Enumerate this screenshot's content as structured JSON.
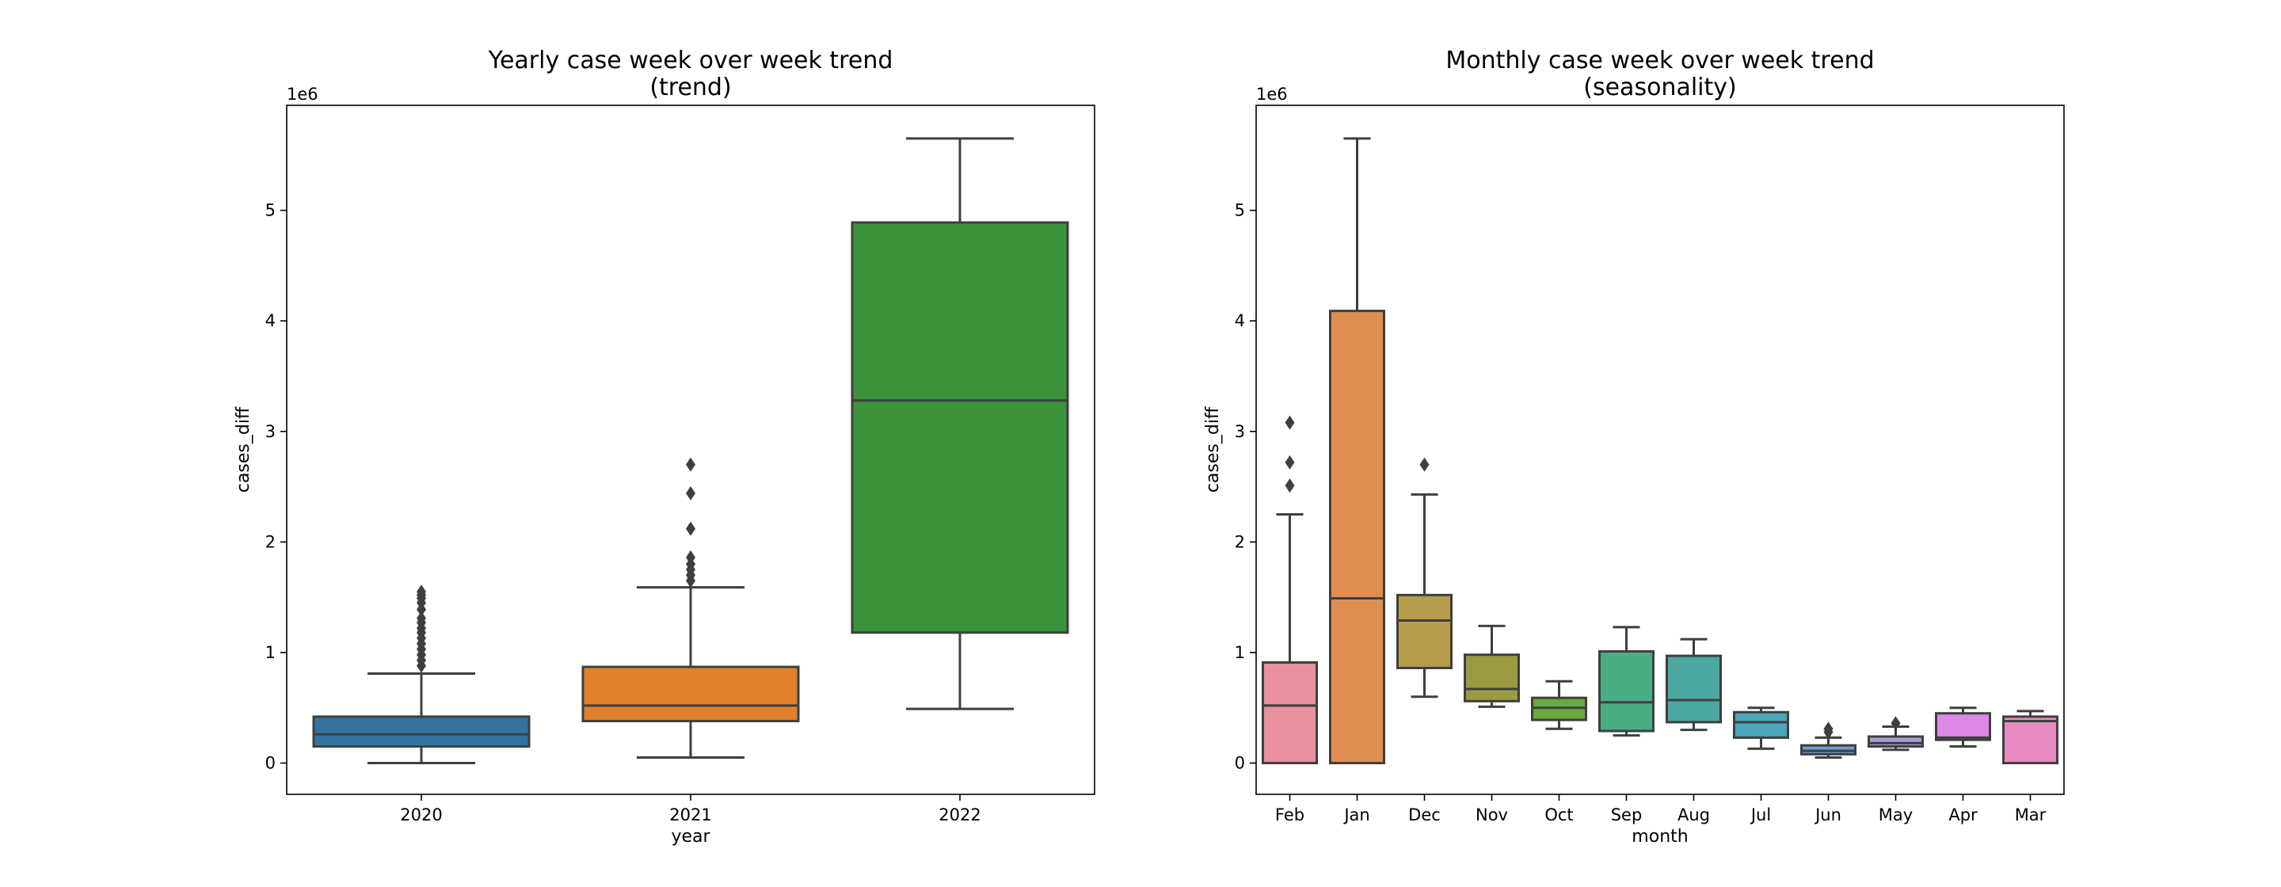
{
  "chart_data": [
    {
      "type": "box",
      "title": [
        "Yearly case week over week trend",
        "(trend)"
      ],
      "xlabel": "year",
      "ylabel": "cases_diff",
      "y_offset_label": "1e6",
      "ylim": [
        -0.283,
        5.95
      ],
      "yticks": [
        0,
        1,
        2,
        3,
        4,
        5
      ],
      "grid": false,
      "categories": [
        "2020",
        "2021",
        "2022"
      ],
      "colors": [
        "#3274a1",
        "#e1812c",
        "#3a923a"
      ],
      "boxes": [
        {
          "whislo": 0.0,
          "q1": 0.15,
          "med": 0.26,
          "q3": 0.42,
          "whishi": 0.81,
          "fliers": [
            0.88,
            0.93,
            0.98,
            1.03,
            1.08,
            1.13,
            1.18,
            1.22,
            1.27,
            1.31,
            1.39,
            1.45,
            1.49,
            1.52,
            1.55
          ]
        },
        {
          "whislo": 0.05,
          "q1": 0.38,
          "med": 0.52,
          "q3": 0.87,
          "whishi": 1.59,
          "fliers": [
            1.65,
            1.7,
            1.75,
            1.8,
            1.86,
            2.12,
            2.44,
            2.7
          ]
        },
        {
          "whislo": 0.49,
          "q1": 1.18,
          "med": 3.28,
          "q3": 4.89,
          "whishi": 5.65,
          "fliers": []
        }
      ]
    },
    {
      "type": "box",
      "title": [
        "Monthly case week over week trend",
        "(seasonality)"
      ],
      "xlabel": "month",
      "ylabel": "cases_diff",
      "y_offset_label": "1e6",
      "ylim": [
        -0.283,
        5.95
      ],
      "yticks": [
        0,
        1,
        2,
        3,
        4,
        5
      ],
      "grid": false,
      "categories": [
        "Feb",
        "Jan",
        "Dec",
        "Nov",
        "Oct",
        "Sep",
        "Aug",
        "Jul",
        "Jun",
        "May",
        "Apr",
        "Mar"
      ],
      "colors": [
        "#e8909c",
        "#e08f53",
        "#b79c4c",
        "#9b9c41",
        "#6aaa3e",
        "#4aac83",
        "#4aa8a1",
        "#4aa6ba",
        "#6d9ed6",
        "#a59cd9",
        "#dd87e6",
        "#e98cc2"
      ],
      "boxes": [
        {
          "whislo": 0.0,
          "q1": 0.0,
          "med": 0.52,
          "q3": 0.91,
          "whishi": 2.25,
          "fliers": [
            2.51,
            2.72,
            3.08
          ]
        },
        {
          "whislo": 0.0,
          "q1": 0.0,
          "med": 1.49,
          "q3": 4.09,
          "whishi": 5.65,
          "fliers": []
        },
        {
          "whislo": 0.6,
          "q1": 0.86,
          "med": 1.29,
          "q3": 1.52,
          "whishi": 2.43,
          "fliers": [
            2.7
          ]
        },
        {
          "whislo": 0.51,
          "q1": 0.56,
          "med": 0.67,
          "q3": 0.98,
          "whishi": 1.24,
          "fliers": []
        },
        {
          "whislo": 0.31,
          "q1": 0.39,
          "med": 0.5,
          "q3": 0.59,
          "whishi": 0.74,
          "fliers": []
        },
        {
          "whislo": 0.25,
          "q1": 0.29,
          "med": 0.55,
          "q3": 1.01,
          "whishi": 1.23,
          "fliers": []
        },
        {
          "whislo": 0.3,
          "q1": 0.37,
          "med": 0.57,
          "q3": 0.97,
          "whishi": 1.12,
          "fliers": []
        },
        {
          "whislo": 0.13,
          "q1": 0.23,
          "med": 0.37,
          "q3": 0.46,
          "whishi": 0.5,
          "fliers": []
        },
        {
          "whislo": 0.05,
          "q1": 0.08,
          "med": 0.11,
          "q3": 0.16,
          "whishi": 0.23,
          "fliers": [
            0.28,
            0.31
          ]
        },
        {
          "whislo": 0.12,
          "q1": 0.15,
          "med": 0.18,
          "q3": 0.24,
          "whishi": 0.33,
          "fliers": [
            0.36
          ]
        },
        {
          "whislo": 0.15,
          "q1": 0.21,
          "med": 0.23,
          "q3": 0.45,
          "whishi": 0.5,
          "fliers": []
        },
        {
          "whislo": 0.0,
          "q1": 0.0,
          "med": 0.38,
          "q3": 0.42,
          "whishi": 0.47,
          "fliers": []
        }
      ]
    }
  ]
}
